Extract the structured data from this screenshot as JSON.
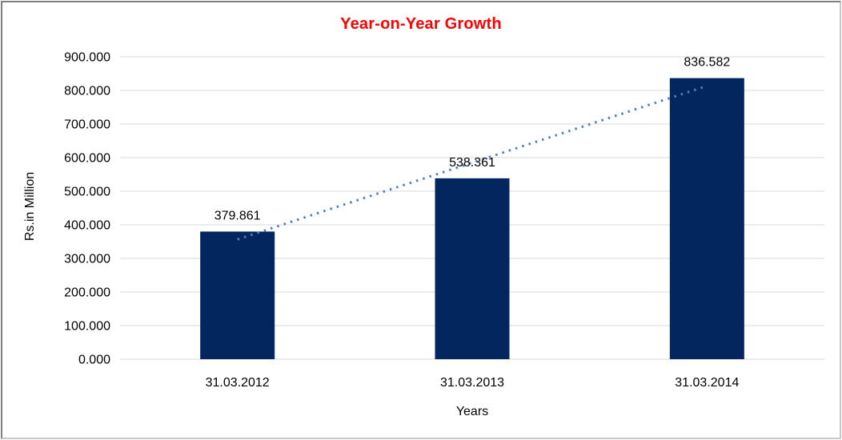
{
  "chart_data": {
    "type": "bar",
    "title": "Year-on-Year Growth",
    "categories": [
      "31.03.2012",
      "31.03.2013",
      "31.03.2014"
    ],
    "values": [
      379.861,
      538.361,
      836.582
    ],
    "value_labels": [
      "379.861",
      "538.361",
      "836.582"
    ],
    "xlabel": "Years",
    "ylabel": "Rs.in Million",
    "ylim": [
      0,
      900
    ],
    "ytick_step": 100,
    "ytick_decimals": 3,
    "ytick_labels": [
      "0.000",
      "100.000",
      "200.000",
      "300.000",
      "400.000",
      "500.000",
      "600.000",
      "700.000",
      "800.000",
      "900.000"
    ],
    "grid": "horizontal",
    "legend_position": "none",
    "trendline": "linear-dotted",
    "colors": {
      "bar": "#03265f",
      "trendline": "#4f81bd",
      "gridline": "#d9d9d9",
      "title": "#ff0000",
      "text": "#000000",
      "background": "#ffffff"
    }
  }
}
